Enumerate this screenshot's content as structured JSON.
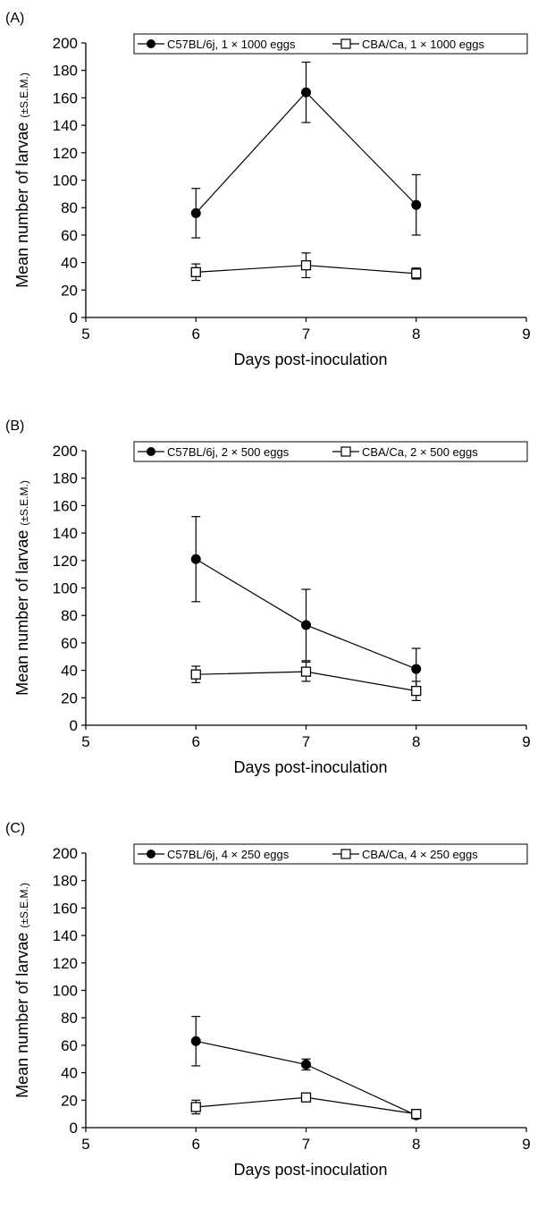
{
  "chart_data": [
    {
      "type": "line",
      "panel_label": "(A)",
      "xlabel": "Days post-inoculation",
      "ylabel_main": "Mean number of larvae",
      "ylabel_sub": "(±S.E.M.)",
      "xlim": [
        5,
        9
      ],
      "ylim": [
        0,
        200
      ],
      "x_ticks": [
        5,
        6,
        7,
        8,
        9
      ],
      "y_ticks": [
        0,
        20,
        40,
        60,
        80,
        100,
        120,
        140,
        160,
        180,
        200
      ],
      "x": [
        6,
        7,
        8
      ],
      "series": [
        {
          "name": "C57BL/6j, 1 × 1000 eggs",
          "marker": "filled-circle",
          "values": [
            76,
            164,
            82
          ],
          "error": [
            18,
            22,
            22
          ]
        },
        {
          "name": "CBA/Ca, 1 × 1000 eggs",
          "marker": "open-square",
          "values": [
            33,
            38,
            32
          ],
          "error": [
            6,
            9,
            4
          ]
        }
      ],
      "legend_position": "top"
    },
    {
      "type": "line",
      "panel_label": "(B)",
      "xlabel": "Days post-inoculation",
      "ylabel_main": "Mean number of larvae",
      "ylabel_sub": "(±S.E.M.)",
      "xlim": [
        5,
        9
      ],
      "ylim": [
        0,
        200
      ],
      "x_ticks": [
        5,
        6,
        7,
        8,
        9
      ],
      "y_ticks": [
        0,
        20,
        40,
        60,
        80,
        100,
        120,
        140,
        160,
        180,
        200
      ],
      "x": [
        6,
        7,
        8
      ],
      "series": [
        {
          "name": "C57BL/6j, 2 × 500 eggs",
          "marker": "filled-circle",
          "values": [
            121,
            73,
            41
          ],
          "error": [
            31,
            26,
            15
          ]
        },
        {
          "name": "CBA/Ca, 2 × 500 eggs",
          "marker": "open-square",
          "values": [
            37,
            39,
            25
          ],
          "error": [
            6,
            7,
            7
          ]
        }
      ],
      "legend_position": "top"
    },
    {
      "type": "line",
      "panel_label": "(C)",
      "xlabel": "Days post-inoculation",
      "ylabel_main": "Mean number of larvae",
      "ylabel_sub": "(±S.E.M.)",
      "xlim": [
        5,
        9
      ],
      "ylim": [
        0,
        200
      ],
      "x_ticks": [
        5,
        6,
        7,
        8,
        9
      ],
      "y_ticks": [
        0,
        20,
        40,
        60,
        80,
        100,
        120,
        140,
        160,
        180,
        200
      ],
      "x": [
        6,
        7,
        8
      ],
      "series": [
        {
          "name": "C57BL/6j, 4 × 250 eggs",
          "marker": "filled-circle",
          "values": [
            63,
            46,
            9
          ],
          "error": [
            18,
            4,
            1
          ]
        },
        {
          "name": "CBA/Ca, 4 × 250 eggs",
          "marker": "open-square",
          "values": [
            15,
            22,
            10
          ],
          "error": [
            5,
            2,
            1
          ]
        }
      ],
      "legend_position": "top"
    }
  ]
}
